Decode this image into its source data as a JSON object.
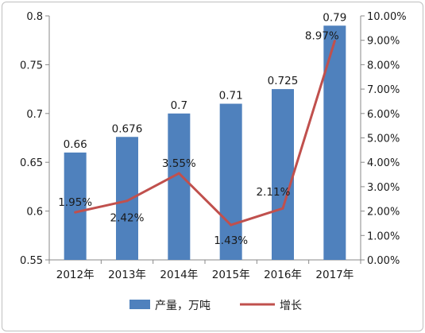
{
  "chart_data": {
    "type": "bar+line",
    "categories": [
      "2012年",
      "2013年",
      "2014年",
      "2015年",
      "2016年",
      "2017年"
    ],
    "series": [
      {
        "name": "产量，万吨",
        "type": "bar",
        "axis": "left",
        "values": [
          0.66,
          0.676,
          0.7,
          0.71,
          0.725,
          0.79
        ],
        "labels": [
          "0.66",
          "0.676",
          "0.7",
          "0.71",
          "0.725",
          "0.79"
        ],
        "color": "#4f81bd"
      },
      {
        "name": "增长",
        "type": "line",
        "axis": "right",
        "values": [
          1.95,
          2.42,
          3.55,
          1.43,
          2.11,
          8.97
        ],
        "labels": [
          "1.95%",
          "2.42%",
          "3.55%",
          "1.43%",
          "2.11%",
          "8.97%"
        ],
        "color": "#c0504d"
      }
    ],
    "y_left": {
      "min": 0.55,
      "max": 0.8,
      "ticks": [
        "0.55",
        "0.6",
        "0.65",
        "0.7",
        "0.75",
        "0.8"
      ]
    },
    "y_right": {
      "min": 0,
      "max": 10,
      "ticks": [
        "0.00%",
        "1.00%",
        "2.00%",
        "3.00%",
        "4.00%",
        "5.00%",
        "6.00%",
        "7.00%",
        "8.00%",
        "9.00%",
        "10.00%"
      ]
    },
    "grid": false,
    "legend": "bottom"
  }
}
